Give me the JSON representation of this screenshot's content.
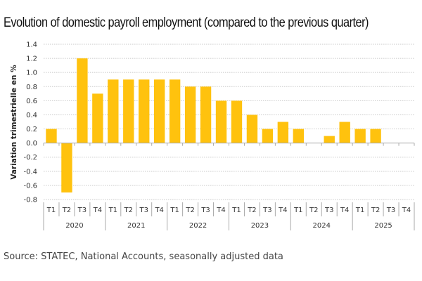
{
  "chart_data": {
    "type": "bar",
    "title": "Evolution of domestic payroll employment (compared to the previous quarter)",
    "xlabel": "",
    "ylabel": "Variation trimestrielle en %",
    "ylim": [
      -0.8,
      1.4
    ],
    "yticks": [
      "1.4",
      "1.2",
      "1.0",
      "0.8",
      "0.6",
      "0.4",
      "0.2",
      "0.0",
      "-0.2",
      "-0.4",
      "-0.6",
      "-0.8"
    ],
    "ytick_values": [
      1.4,
      1.2,
      1.0,
      0.8,
      0.6,
      0.4,
      0.2,
      0.0,
      -0.2,
      -0.4,
      -0.6,
      -0.8
    ],
    "grid": true,
    "groups": [
      {
        "year": "2020",
        "quarters": [
          "T1",
          "T2",
          "T3",
          "T4"
        ]
      },
      {
        "year": "2021",
        "quarters": [
          "T1",
          "T2",
          "T3",
          "T4"
        ]
      },
      {
        "year": "2022",
        "quarters": [
          "T1",
          "T2",
          "T3",
          "T4"
        ]
      },
      {
        "year": "2023",
        "quarters": [
          "T1",
          "T2",
          "T3",
          "T4"
        ]
      },
      {
        "year": "2024",
        "quarters": [
          "T1",
          "T2",
          "T3",
          "T4"
        ]
      },
      {
        "year": "2025",
        "quarters": [
          "T1",
          "T2",
          "T3",
          "T4"
        ]
      }
    ],
    "values": [
      0.2,
      -0.7,
      1.2,
      0.7,
      0.9,
      0.9,
      0.9,
      0.9,
      0.9,
      0.8,
      0.8,
      0.6,
      0.6,
      0.4,
      0.2,
      0.3,
      0.2,
      0.0,
      0.1,
      0.3,
      0.2,
      0.2,
      null,
      null
    ],
    "bar_color": "#FFC20E",
    "source": "Source: STATEC, National Accounts, seasonally adjusted data"
  }
}
